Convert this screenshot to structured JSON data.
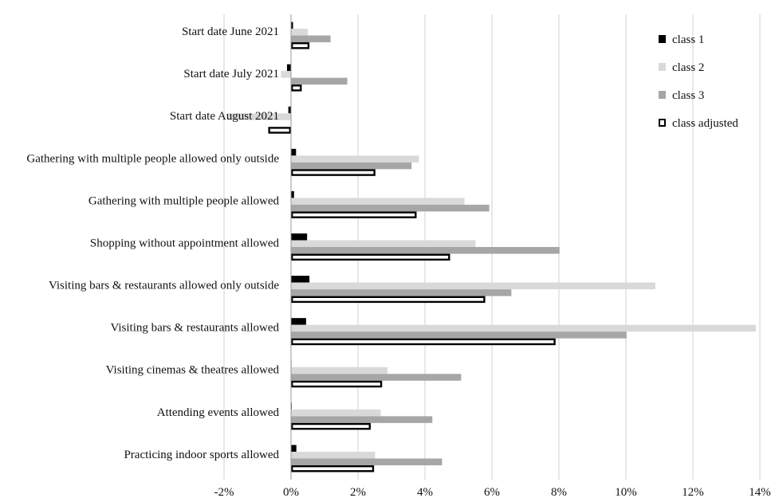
{
  "chart_data": {
    "type": "bar",
    "orientation": "horizontal",
    "title": "",
    "xlabel": "",
    "ylabel": "",
    "xlim": [
      -0.02,
      0.14
    ],
    "x_ticks": [
      -0.02,
      0,
      0.02,
      0.04,
      0.06,
      0.08,
      0.1,
      0.12,
      0.14
    ],
    "x_tick_labels": [
      "-2%",
      "0%",
      "2%",
      "4%",
      "6%",
      "8%",
      "10%",
      "12%",
      "14%"
    ],
    "grid": "vertical",
    "legend": "top-right",
    "categories": [
      "Start date June 2021",
      "Start date July 2021",
      "Start date August 2021",
      "Gathering with multiple people allowed only outside",
      "Gathering with multiple people allowed",
      "Shopping without appointment allowed",
      "Visiting bars & restaurants allowed only outside",
      "Visiting bars & restaurants allowed",
      "Visiting cinemas & theatres allowed",
      "Attending events allowed",
      "Practicing indoor sports allowed"
    ],
    "series": [
      {
        "name": "class 1",
        "fill": "#000000",
        "stroke": "#000000",
        "values": [
          0.0006,
          -0.0012,
          -0.0008,
          0.0015,
          0.0009,
          0.0048,
          0.0055,
          0.0045,
          0.0001,
          0.0002,
          0.0016
        ]
      },
      {
        "name": "class 2",
        "fill": "#d9d9d9",
        "stroke": "#d9d9d9",
        "values": [
          0.005,
          -0.003,
          -0.019,
          0.0382,
          0.0518,
          0.0551,
          0.1088,
          0.1388,
          0.0288,
          0.0268,
          0.0251
        ]
      },
      {
        "name": "class 3",
        "fill": "#a6a6a6",
        "stroke": "#a6a6a6",
        "values": [
          0.0118,
          0.0168,
          0.0,
          0.036,
          0.0592,
          0.0802,
          0.0658,
          0.1002,
          0.0508,
          0.0422,
          0.0451
        ]
      },
      {
        "name": "class adjusted",
        "fill": "#ffffff",
        "stroke": "#000000",
        "values": [
          0.0055,
          0.0032,
          -0.0068,
          0.0252,
          0.0375,
          0.0475,
          0.058,
          0.079,
          0.0272,
          0.0238,
          0.0248
        ]
      }
    ]
  }
}
